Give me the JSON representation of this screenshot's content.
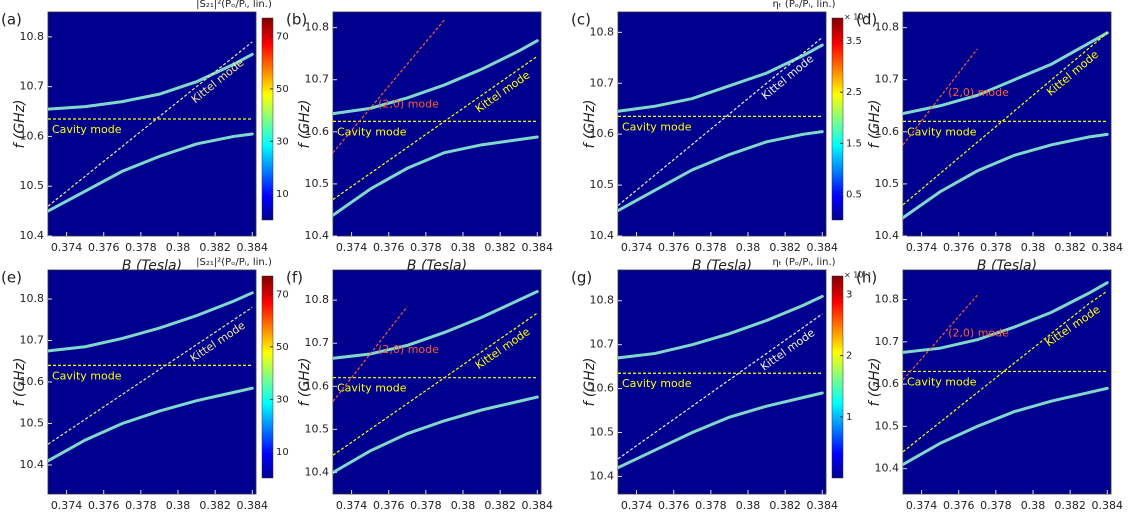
{
  "chart_data": [
    {
      "type": "heatmap",
      "panel_label": "(a)",
      "xlabel": "B  (Tesla)",
      "ylabel": "f  (GHz)",
      "background": "#00008f",
      "xlim": [
        0.373,
        0.3842
      ],
      "xticks": [
        0.374,
        0.376,
        0.378,
        0.38,
        0.382,
        0.384
      ],
      "ylim": [
        10.4,
        10.85
      ],
      "yticks": [
        10.4,
        10.5,
        10.6,
        10.7,
        10.8
      ],
      "x": [
        0.373,
        0.375,
        0.377,
        0.379,
        0.381,
        0.383,
        0.384
      ],
      "series": [
        {
          "color": "#8ef0d0",
          "dashed": false,
          "values": [
            10.655,
            10.66,
            10.67,
            10.685,
            10.71,
            10.745,
            10.765
          ]
        },
        {
          "color": "#8ef0d0",
          "dashed": false,
          "values": [
            10.45,
            10.49,
            10.53,
            10.56,
            10.585,
            10.6,
            10.605
          ]
        },
        {
          "name": "Kittel mode",
          "color": "#f0e68c",
          "dashed": true,
          "values": [
            10.46,
            10.52,
            10.58,
            10.64,
            10.7,
            10.76,
            10.79
          ]
        },
        {
          "name": "Cavity mode",
          "color": "#ffff00",
          "dashed": true,
          "values": [
            10.635,
            10.635,
            10.635,
            10.635,
            10.635,
            10.635,
            10.635
          ]
        }
      ],
      "colorbar": {
        "title": "|S₂₁|²(Pₒ/Pᵢ, lin.)",
        "clim": [
          0,
          77
        ],
        "ticks": [
          10,
          30,
          50,
          70
        ]
      }
    },
    {
      "type": "heatmap",
      "panel_label": "(b)",
      "xlabel": "B  (Tesla)",
      "ylabel": "f  (GHz)",
      "background": "#00008f",
      "xlim": [
        0.373,
        0.3842
      ],
      "xticks": [
        0.374,
        0.376,
        0.378,
        0.38,
        0.382,
        0.384
      ],
      "ylim": [
        10.4,
        10.83
      ],
      "yticks": [
        10.4,
        10.5,
        10.6,
        10.7,
        10.8
      ],
      "x": [
        0.373,
        0.375,
        0.377,
        0.379,
        0.381,
        0.383,
        0.384
      ],
      "series": [
        {
          "color": "#8ef0d0",
          "dashed": false,
          "values": [
            10.635,
            10.645,
            10.665,
            10.69,
            10.72,
            10.755,
            10.775
          ]
        },
        {
          "color": "#8ef0d0",
          "dashed": false,
          "values": [
            10.44,
            10.49,
            10.53,
            10.56,
            10.575,
            10.585,
            10.59
          ]
        },
        {
          "name": "Kittel mode",
          "color": "#ffff00",
          "dashed": true,
          "values": [
            10.47,
            10.52,
            10.57,
            10.62,
            10.67,
            10.72,
            10.745
          ]
        },
        {
          "name": "Cavity mode",
          "color": "#ffff00",
          "dashed": true,
          "values": [
            10.62,
            10.62,
            10.62,
            10.62,
            10.62,
            10.62,
            10.62
          ]
        },
        {
          "name": "(2,0) mode",
          "color": "#ff5a2e",
          "dashed": true,
          "values": [
            10.56,
            10.645,
            10.73,
            10.815,
            null,
            null,
            null
          ]
        }
      ]
    },
    {
      "type": "heatmap",
      "panel_label": "(c)",
      "xlabel": "B  (Tesla)",
      "ylabel": "f  (GHz)",
      "background": "#00008f",
      "xlim": [
        0.373,
        0.3842
      ],
      "xticks": [
        0.374,
        0.376,
        0.378,
        0.38,
        0.382,
        0.384
      ],
      "ylim": [
        10.4,
        10.84
      ],
      "yticks": [
        10.4,
        10.5,
        10.6,
        10.7,
        10.8
      ],
      "x": [
        0.373,
        0.375,
        0.377,
        0.379,
        0.381,
        0.383,
        0.384
      ],
      "series": [
        {
          "color": "#8ef0d0",
          "dashed": false,
          "values": [
            10.645,
            10.655,
            10.67,
            10.695,
            10.72,
            10.755,
            10.775
          ]
        },
        {
          "color": "#8ef0d0",
          "dashed": false,
          "values": [
            10.45,
            10.49,
            10.53,
            10.56,
            10.585,
            10.6,
            10.605
          ]
        },
        {
          "name": "Kittel mode",
          "color": "#f0f0d0",
          "dashed": true,
          "values": [
            10.46,
            10.52,
            10.58,
            10.64,
            10.7,
            10.76,
            10.79
          ]
        },
        {
          "name": "Cavity mode",
          "color": "#ffff00",
          "dashed": true,
          "values": [
            10.635,
            10.635,
            10.635,
            10.635,
            10.635,
            10.635,
            10.635
          ]
        }
      ],
      "colorbar": {
        "title": "ηₜ (Pₒ/Pᵢ, lin.)",
        "exponent": "× 10⁻³",
        "clim": [
          0,
          3.95
        ],
        "ticks": [
          0.5,
          1.5,
          2.5,
          3.5
        ]
      }
    },
    {
      "type": "heatmap",
      "panel_label": "(d)",
      "xlabel": "B  (Tesla)",
      "ylabel": "f  (GHz)",
      "background": "#00008f",
      "xlim": [
        0.373,
        0.3842
      ],
      "xticks": [
        0.374,
        0.376,
        0.378,
        0.38,
        0.382,
        0.384
      ],
      "ylim": [
        10.4,
        10.83
      ],
      "yticks": [
        10.4,
        10.5,
        10.6,
        10.7,
        10.8
      ],
      "x": [
        0.373,
        0.375,
        0.377,
        0.379,
        0.381,
        0.383,
        0.384
      ],
      "series": [
        {
          "color": "#8ef0d0",
          "dashed": false,
          "values": [
            10.635,
            10.65,
            10.67,
            10.7,
            10.73,
            10.77,
            10.79
          ]
        },
        {
          "color": "#8ef0d0",
          "dashed": false,
          "values": [
            10.435,
            10.485,
            10.525,
            10.555,
            10.575,
            10.59,
            10.595
          ]
        },
        {
          "name": "Kittel mode",
          "color": "#ffff00",
          "dashed": true,
          "values": [
            10.46,
            10.52,
            10.58,
            10.64,
            10.7,
            10.76,
            10.79
          ]
        },
        {
          "name": "Cavity mode",
          "color": "#ffff00",
          "dashed": true,
          "values": [
            10.62,
            10.62,
            10.62,
            10.62,
            10.62,
            10.62,
            10.62
          ]
        },
        {
          "name": "(2,0) mode",
          "color": "#ff5a2e",
          "dashed": true,
          "values": [
            10.575,
            10.667,
            10.759,
            null,
            null,
            null,
            null
          ]
        }
      ]
    },
    {
      "type": "heatmap",
      "panel_label": "(e)",
      "xlabel": "B  (Tesla)",
      "ylabel": "f  (GHz)",
      "background": "#00008f",
      "xlim": [
        0.373,
        0.3842
      ],
      "xticks": [
        0.374,
        0.376,
        0.378,
        0.38,
        0.382,
        0.384
      ],
      "ylim": [
        10.33,
        10.87
      ],
      "yticks": [
        10.4,
        10.5,
        10.6,
        10.7,
        10.8
      ],
      "x": [
        0.373,
        0.375,
        0.377,
        0.379,
        0.381,
        0.383,
        0.384
      ],
      "series": [
        {
          "color": "#8ef0d0",
          "dashed": false,
          "values": [
            10.675,
            10.685,
            10.705,
            10.73,
            10.76,
            10.795,
            10.815
          ]
        },
        {
          "color": "#8ef0d0",
          "dashed": false,
          "values": [
            10.41,
            10.46,
            10.5,
            10.53,
            10.555,
            10.575,
            10.585
          ]
        },
        {
          "name": "Kittel mode",
          "color": "#f0e68c",
          "dashed": true,
          "values": [
            10.45,
            10.51,
            10.57,
            10.63,
            10.69,
            10.75,
            10.78
          ]
        },
        {
          "name": "Cavity mode",
          "color": "#ffff00",
          "dashed": true,
          "values": [
            10.64,
            10.64,
            10.64,
            10.64,
            10.64,
            10.64,
            10.64
          ]
        }
      ],
      "colorbar": {
        "title": "|S₂₁|²(Pₒ/Pᵢ, lin.)",
        "clim": [
          0,
          77
        ],
        "ticks": [
          10,
          30,
          50,
          70
        ]
      }
    },
    {
      "type": "heatmap",
      "panel_label": "(f)",
      "xlabel": "B  (Tesla)",
      "ylabel": "f  (GHz)",
      "background": "#00008f",
      "xlim": [
        0.373,
        0.3842
      ],
      "xticks": [
        0.374,
        0.376,
        0.378,
        0.38,
        0.382,
        0.384
      ],
      "ylim": [
        10.35,
        10.87
      ],
      "yticks": [
        10.4,
        10.5,
        10.6,
        10.7,
        10.8
      ],
      "x": [
        0.373,
        0.375,
        0.377,
        0.379,
        0.381,
        0.383,
        0.384
      ],
      "series": [
        {
          "color": "#8ef0d0",
          "dashed": false,
          "values": [
            10.665,
            10.675,
            10.695,
            10.725,
            10.76,
            10.8,
            10.82
          ]
        },
        {
          "color": "#8ef0d0",
          "dashed": false,
          "values": [
            10.4,
            10.45,
            10.49,
            10.52,
            10.545,
            10.565,
            10.575
          ]
        },
        {
          "name": "Kittel mode",
          "color": "#ffff00",
          "dashed": true,
          "values": [
            10.44,
            10.5,
            10.56,
            10.62,
            10.68,
            10.74,
            10.77
          ]
        },
        {
          "name": "Cavity mode",
          "color": "#ffff00",
          "dashed": true,
          "values": [
            10.62,
            10.62,
            10.62,
            10.62,
            10.62,
            10.62,
            10.62
          ]
        },
        {
          "name": "(2,0) mode",
          "color": "#ff5a2e",
          "dashed": true,
          "values": [
            10.565,
            10.675,
            10.785,
            null,
            null,
            null,
            null
          ]
        }
      ]
    },
    {
      "type": "heatmap",
      "panel_label": "(g)",
      "xlabel": "B  (Tesla)",
      "ylabel": "f  (GHz)",
      "background": "#00008f",
      "xlim": [
        0.373,
        0.3842
      ],
      "xticks": [
        0.374,
        0.376,
        0.378,
        0.38,
        0.382,
        0.384
      ],
      "ylim": [
        10.36,
        10.87
      ],
      "yticks": [
        10.4,
        10.5,
        10.6,
        10.7,
        10.8
      ],
      "x": [
        0.373,
        0.375,
        0.377,
        0.379,
        0.381,
        0.383,
        0.384
      ],
      "series": [
        {
          "color": "#8ef0d0",
          "dashed": false,
          "values": [
            10.67,
            10.68,
            10.7,
            10.725,
            10.755,
            10.79,
            10.81
          ]
        },
        {
          "color": "#8ef0d0",
          "dashed": false,
          "values": [
            10.42,
            10.46,
            10.5,
            10.535,
            10.56,
            10.58,
            10.59
          ]
        },
        {
          "name": "Kittel mode",
          "color": "#f0f0d0",
          "dashed": true,
          "values": [
            10.44,
            10.5,
            10.56,
            10.62,
            10.68,
            10.74,
            10.77
          ]
        },
        {
          "name": "Cavity mode",
          "color": "#ffff00",
          "dashed": true,
          "values": [
            10.635,
            10.635,
            10.635,
            10.635,
            10.635,
            10.635,
            10.635
          ]
        }
      ],
      "colorbar": {
        "title": "ηₜ (Pₒ/Pᵢ, lin.)",
        "exponent": "× 10⁻³",
        "clim": [
          0,
          3.3
        ],
        "ticks": [
          1,
          2,
          3
        ]
      }
    },
    {
      "type": "heatmap",
      "panel_label": "(h)",
      "xlabel": "B  (Tesla)",
      "ylabel": "f  (GHz)",
      "background": "#00008f",
      "xlim": [
        0.373,
        0.3842
      ],
      "xticks": [
        0.374,
        0.376,
        0.378,
        0.38,
        0.382,
        0.384
      ],
      "ylim": [
        10.34,
        10.87
      ],
      "yticks": [
        10.4,
        10.5,
        10.6,
        10.7,
        10.8
      ],
      "x": [
        0.373,
        0.375,
        0.377,
        0.379,
        0.381,
        0.383,
        0.384
      ],
      "series": [
        {
          "color": "#8ef0d0",
          "dashed": false,
          "values": [
            10.675,
            10.685,
            10.705,
            10.735,
            10.77,
            10.815,
            10.84
          ]
        },
        {
          "color": "#8ef0d0",
          "dashed": false,
          "values": [
            10.41,
            10.46,
            10.5,
            10.535,
            10.56,
            10.58,
            10.59
          ]
        },
        {
          "name": "Kittel mode",
          "color": "#ffff00",
          "dashed": true,
          "values": [
            10.44,
            10.51,
            10.58,
            10.65,
            10.72,
            10.79,
            10.82
          ]
        },
        {
          "name": "Cavity mode",
          "color": "#ffff00",
          "dashed": true,
          "values": [
            10.63,
            10.63,
            10.63,
            10.63,
            10.63,
            10.63,
            10.63
          ]
        },
        {
          "name": "(2,0) mode",
          "color": "#ff5a2e",
          "dashed": true,
          "values": [
            10.61,
            10.71,
            10.81,
            null,
            null,
            null,
            null
          ]
        }
      ]
    }
  ]
}
